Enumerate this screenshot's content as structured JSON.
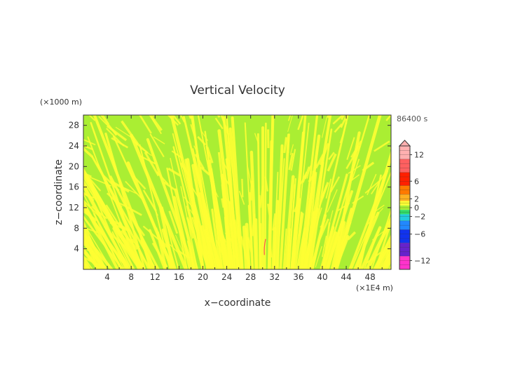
{
  "chart_data": {
    "type": "heatmap",
    "title": "Vertical Velocity",
    "time_label": "86400 s",
    "xlabel": "x−coordinate",
    "ylabel": "z−coordinate",
    "x_unit": "(×1E4 m)",
    "y_unit": "(×1000 m)",
    "xlim": [
      0,
      51.5
    ],
    "ylim": [
      0,
      30
    ],
    "x_ticks": [
      4,
      8,
      12,
      16,
      20,
      24,
      28,
      32,
      36,
      40,
      44,
      48
    ],
    "y_ticks": [
      4,
      8,
      12,
      16,
      20,
      24,
      28
    ],
    "field_description_colors": {
      "dominant_positive": "#ffff33",
      "dominant_negative": "#aaee33"
    },
    "colorbar": {
      "ticks": [
        "12",
        "6",
        "2",
        "0",
        "−2",
        "−6",
        "−12"
      ],
      "tick_values": [
        12,
        6,
        2,
        0,
        -2,
        -6,
        -12
      ],
      "range": [
        -14,
        14
      ],
      "colors": [
        {
          "from": 11,
          "to": 14,
          "color": "#ffb0b0"
        },
        {
          "from": 8,
          "to": 11,
          "color": "#ff6060"
        },
        {
          "from": 5,
          "to": 8,
          "color": "#ff2000"
        },
        {
          "from": 3,
          "to": 5,
          "color": "#ff7a00"
        },
        {
          "from": 1.5,
          "to": 3,
          "color": "#ffb020"
        },
        {
          "from": 0.5,
          "to": 1.5,
          "color": "#ffff33"
        },
        {
          "from": -0.5,
          "to": 0.5,
          "color": "#aaee33"
        },
        {
          "from": -1.5,
          "to": -0.5,
          "color": "#33dd66"
        },
        {
          "from": -3,
          "to": -1.5,
          "color": "#22ccdd"
        },
        {
          "from": -5,
          "to": -3,
          "color": "#2288ff"
        },
        {
          "from": -8,
          "to": -5,
          "color": "#1133ee"
        },
        {
          "from": -11,
          "to": -8,
          "color": "#6622cc"
        },
        {
          "from": -14,
          "to": -11,
          "color": "#ff33cc"
        }
      ]
    }
  }
}
